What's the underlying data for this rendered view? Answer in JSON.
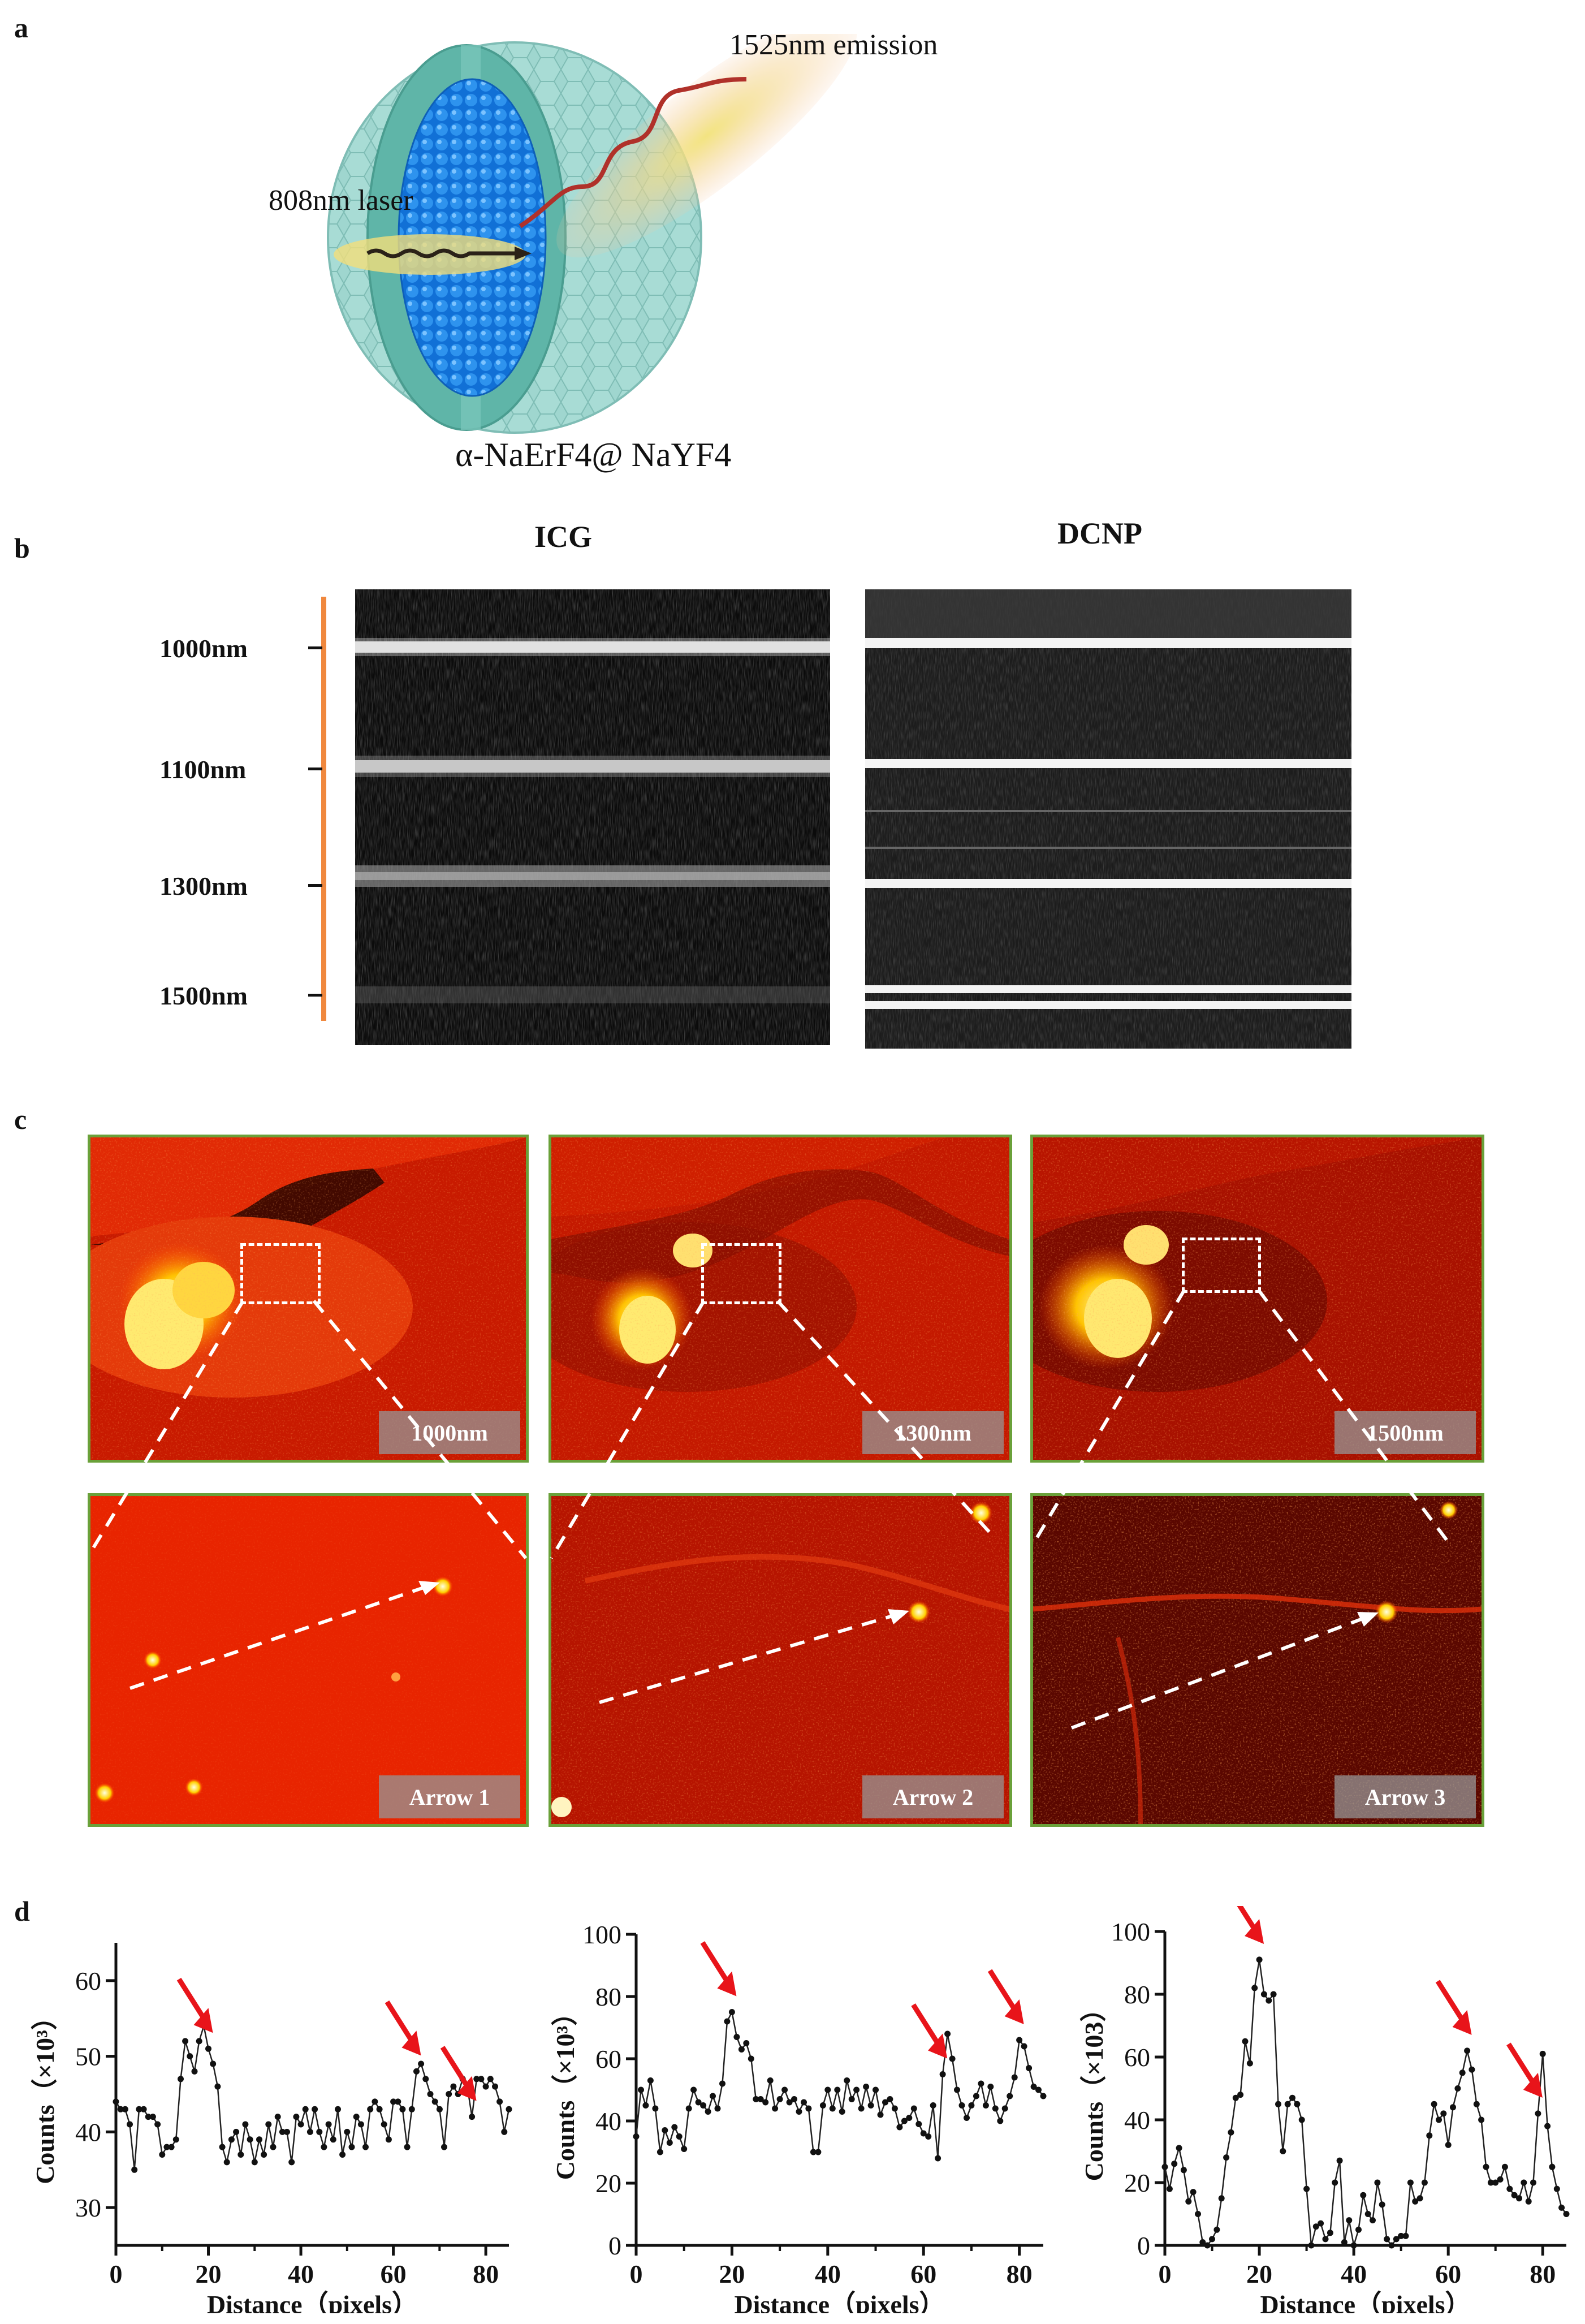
{
  "panel_a": {
    "letter": "a",
    "emission_label": "1525nm emission",
    "laser_label": "808nm laser",
    "particle_label": "α-NaErF4@ NaYF4"
  },
  "panel_b": {
    "letter": "b",
    "icg_title": "ICG",
    "dcnp_title": "DCNP",
    "wavelengths": [
      "1000nm",
      "1100nm",
      "1300nm",
      "1500nm"
    ],
    "axis_color": "#f0883e"
  },
  "panel_c": {
    "letter": "c",
    "top_tags": [
      "1000nm",
      "1300nm",
      "1500nm"
    ],
    "bottom_tags": [
      "Arrow 1",
      "Arrow 2",
      "Arrow 3"
    ],
    "frame_color": "#6aa13a"
  },
  "panel_d": {
    "letter": "d"
  },
  "chart_data": [
    {
      "type": "line",
      "xlabel": "Distance（pixels）",
      "ylabel": "Counts（×10³）",
      "xlim": [
        0,
        85
      ],
      "ylim": [
        25,
        65
      ],
      "xticks": [
        0,
        20,
        40,
        60,
        80
      ],
      "yticks": [
        30,
        40,
        50,
        60
      ],
      "x": [
        0,
        1,
        2,
        3,
        4,
        5,
        6,
        7,
        8,
        9,
        10,
        11,
        12,
        13,
        14,
        15,
        16,
        17,
        18,
        19,
        20,
        21,
        22,
        23,
        24,
        25,
        26,
        27,
        28,
        29,
        30,
        31,
        32,
        33,
        34,
        35,
        36,
        37,
        38,
        39,
        40,
        41,
        42,
        43,
        44,
        45,
        46,
        47,
        48,
        49,
        50,
        51,
        52,
        53,
        54,
        55,
        56,
        57,
        58,
        59,
        60,
        61,
        62,
        63,
        64,
        65,
        66,
        67,
        68,
        69,
        70,
        71,
        72,
        73,
        74,
        75,
        76,
        77,
        78,
        79,
        80,
        81,
        82,
        83,
        84,
        85
      ],
      "values": [
        44,
        43,
        43,
        41,
        35,
        43,
        43,
        42,
        42,
        41,
        37,
        38,
        38,
        39,
        47,
        52,
        50,
        48,
        52,
        54,
        51,
        49,
        46,
        38,
        36,
        39,
        40,
        37,
        41,
        39,
        36,
        39,
        37,
        41,
        38,
        42,
        40,
        40,
        36,
        42,
        41,
        43,
        40,
        43,
        40,
        38,
        41,
        39,
        43,
        37,
        40,
        38,
        42,
        41,
        38,
        43,
        44,
        43,
        41,
        39,
        44,
        44,
        43,
        38,
        43,
        48,
        49,
        47,
        45,
        44,
        43,
        38,
        45,
        46,
        45,
        47,
        46,
        42,
        47,
        47,
        46,
        47,
        46,
        44,
        40,
        43
      ],
      "annotation_peaks": [
        20,
        65,
        77
      ]
    },
    {
      "type": "line",
      "xlabel": "Distance（pixels）",
      "ylabel": "Counts（×10³）",
      "xlim": [
        0,
        85
      ],
      "ylim": [
        0,
        100
      ],
      "xticks": [
        0,
        20,
        40,
        60,
        80
      ],
      "yticks": [
        0,
        20,
        40,
        60,
        80,
        100
      ],
      "x": [
        0,
        1,
        2,
        3,
        4,
        5,
        6,
        7,
        8,
        9,
        10,
        11,
        12,
        13,
        14,
        15,
        16,
        17,
        18,
        19,
        20,
        21,
        22,
        23,
        24,
        25,
        26,
        27,
        28,
        29,
        30,
        31,
        32,
        33,
        34,
        35,
        36,
        37,
        38,
        39,
        40,
        41,
        42,
        43,
        44,
        45,
        46,
        47,
        48,
        49,
        50,
        51,
        52,
        53,
        54,
        55,
        56,
        57,
        58,
        59,
        60,
        61,
        62,
        63,
        64,
        65,
        66,
        67,
        68,
        69,
        70,
        71,
        72,
        73,
        74,
        75,
        76,
        77,
        78,
        79,
        80,
        81,
        82,
        83,
        84,
        85
      ],
      "values": [
        35,
        50,
        45,
        53,
        44,
        30,
        37,
        33,
        38,
        35,
        31,
        44,
        50,
        46,
        45,
        43,
        48,
        44,
        52,
        72,
        75,
        67,
        63,
        65,
        60,
        47,
        47,
        46,
        53,
        44,
        47,
        50,
        46,
        47,
        43,
        46,
        44,
        30,
        30,
        45,
        50,
        44,
        50,
        43,
        53,
        47,
        50,
        44,
        51,
        45,
        50,
        42,
        46,
        47,
        44,
        38,
        40,
        41,
        44,
        39,
        36,
        35,
        45,
        28,
        55,
        68,
        60,
        50,
        45,
        41,
        45,
        48,
        52,
        45,
        51,
        44,
        40,
        44,
        48,
        54,
        66,
        64,
        57,
        51,
        50,
        48
      ],
      "annotation_peaks": [
        20,
        64,
        80
      ]
    },
    {
      "type": "line",
      "xlabel": "Distance（pixels）",
      "ylabel": "Counts（×103）",
      "xlim": [
        0,
        85
      ],
      "ylim": [
        0,
        100
      ],
      "xticks": [
        0,
        20,
        40,
        60,
        80
      ],
      "yticks": [
        0,
        20,
        40,
        60,
        80,
        100
      ],
      "x": [
        0,
        1,
        2,
        3,
        4,
        5,
        6,
        7,
        8,
        9,
        10,
        11,
        12,
        13,
        14,
        15,
        16,
        17,
        18,
        19,
        20,
        21,
        22,
        23,
        24,
        25,
        26,
        27,
        28,
        29,
        30,
        31,
        32,
        33,
        34,
        35,
        36,
        37,
        38,
        39,
        40,
        41,
        42,
        43,
        44,
        45,
        46,
        47,
        48,
        49,
        50,
        51,
        52,
        53,
        54,
        55,
        56,
        57,
        58,
        59,
        60,
        61,
        62,
        63,
        64,
        65,
        66,
        67,
        68,
        69,
        70,
        71,
        72,
        73,
        74,
        75,
        76,
        77,
        78,
        79,
        80,
        81,
        82,
        83,
        84,
        85
      ],
      "values": [
        25,
        18,
        26,
        31,
        24,
        14,
        17,
        10,
        1,
        0,
        2,
        5,
        15,
        28,
        36,
        47,
        48,
        65,
        58,
        82,
        91,
        80,
        78,
        80,
        45,
        30,
        45,
        47,
        45,
        40,
        18,
        0,
        6,
        7,
        2,
        4,
        20,
        27,
        1,
        8,
        0,
        5,
        16,
        10,
        8,
        20,
        13,
        2,
        0,
        2,
        3,
        3,
        20,
        14,
        15,
        20,
        35,
        45,
        40,
        42,
        32,
        44,
        50,
        55,
        62,
        56,
        45,
        40,
        25,
        20,
        20,
        21,
        25,
        18,
        16,
        15,
        20,
        14,
        20,
        42,
        61,
        38,
        25,
        18,
        12,
        10
      ],
      "annotation_peaks": [
        20,
        64,
        79
      ]
    }
  ]
}
